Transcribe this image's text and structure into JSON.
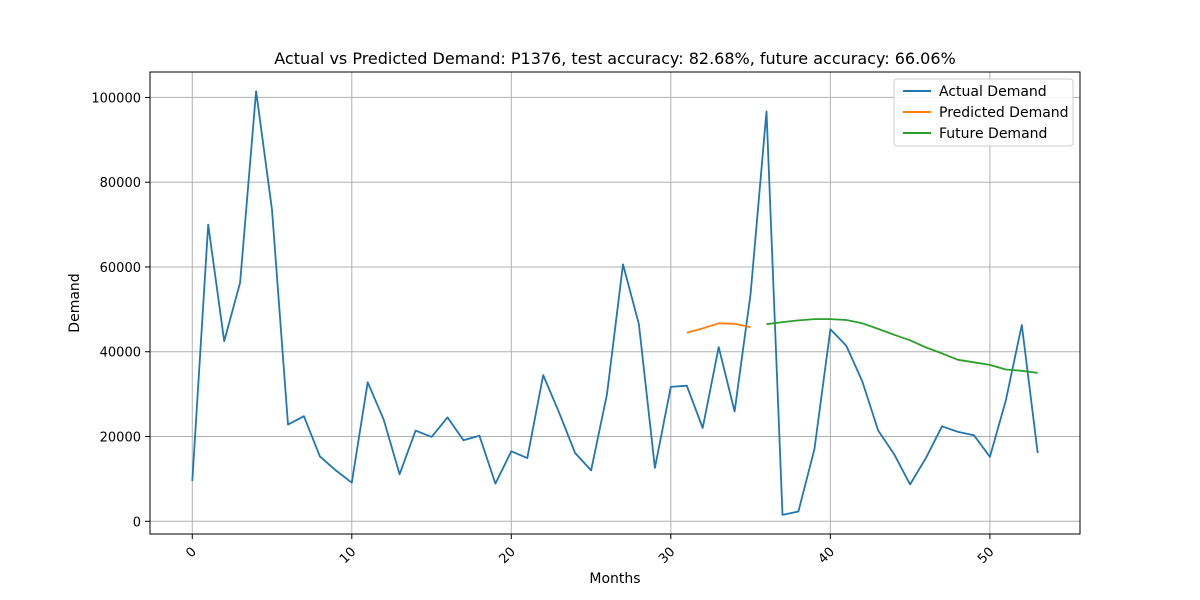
{
  "chart_data": {
    "type": "line",
    "title": "Actual vs Predicted Demand: P1376, test accuracy: 82.68%, future accuracy: 66.06%",
    "xlabel": "Months",
    "ylabel": "Demand",
    "xlim": [
      -2.65,
      55.65
    ],
    "ylim": [
      -3000,
      106000
    ],
    "xticks": [
      0,
      10,
      20,
      30,
      40,
      50
    ],
    "xtick_labels": [
      "0",
      "10",
      "20",
      "30",
      "40",
      "50"
    ],
    "yticks": [
      0,
      20000,
      40000,
      60000,
      80000,
      100000
    ],
    "ytick_labels": [
      "0",
      "20000",
      "40000",
      "60000",
      "80000",
      "100000"
    ],
    "grid": true,
    "legend_position": "top-right",
    "series": [
      {
        "name": "Actual Demand",
        "color": "#1f77b4",
        "x": [
          0,
          1,
          2,
          3,
          4,
          5,
          6,
          7,
          8,
          9,
          10,
          11,
          12,
          13,
          14,
          15,
          16,
          17,
          18,
          19,
          20,
          21,
          22,
          23,
          24,
          25,
          26,
          27,
          28,
          29,
          30,
          31,
          32,
          33,
          34,
          35,
          36,
          37,
          38,
          39,
          40,
          41,
          42,
          43,
          44,
          45,
          46,
          47,
          48,
          49,
          50,
          51,
          52,
          53
        ],
        "y": [
          9500,
          70000,
          42500,
          56300,
          101500,
          73500,
          22800,
          24800,
          15300,
          12000,
          9100,
          32800,
          24000,
          11100,
          21400,
          19900,
          24500,
          19100,
          20200,
          8900,
          16500,
          14900,
          34500,
          25600,
          16100,
          12000,
          30000,
          60600,
          46500,
          12600,
          31700,
          32000,
          22000,
          41100,
          25900,
          53700,
          96700,
          1500,
          2300,
          17000,
          45300,
          41400,
          33000,
          21400,
          15800,
          8700,
          15000,
          22400,
          21100,
          20300,
          15200,
          28500,
          46300,
          16100
        ]
      },
      {
        "name": "Predicted Demand",
        "color": "#ff7f0e",
        "x": [
          31,
          32,
          33,
          34,
          35
        ],
        "y": [
          44500,
          45500,
          46700,
          46600,
          45800
        ]
      },
      {
        "name": "Future Demand",
        "color": "#2ca02c",
        "x": [
          36,
          37,
          38,
          39,
          40,
          41,
          42,
          43,
          44,
          45,
          46,
          47,
          48,
          49,
          50,
          51,
          52,
          53
        ],
        "y": [
          46500,
          47000,
          47400,
          47700,
          47700,
          47500,
          46700,
          45400,
          44000,
          42700,
          41000,
          39600,
          38100,
          37500,
          36900,
          35800,
          35500,
          35000
        ]
      }
    ]
  }
}
